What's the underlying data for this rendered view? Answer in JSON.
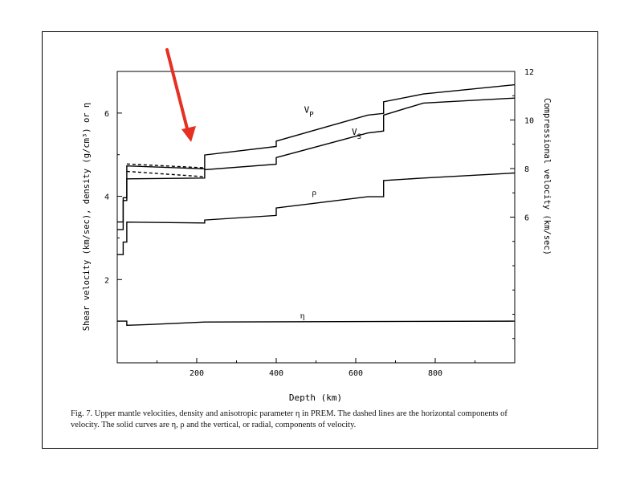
{
  "figure": {
    "caption_line1": "Fig. 7. Upper mantle velocities, density and anisotropic parameter η in PREM. The dashed lines are the horizontal components of",
    "caption_line2": "velocity. The solid curves are η, ρ and the vertical, or radial, components of velocity."
  },
  "annotation": {
    "arrow_color": "#e53022"
  },
  "chart_data": {
    "type": "line",
    "xlabel": "Depth (km)",
    "ylabel_left": "Shear velocity (km/sec), density (g/cm³) or η",
    "ylabel_right": "Compressional velocity (km/sec)",
    "xlim": [
      0,
      1000
    ],
    "ylim_left": [
      0,
      7
    ],
    "ylim_right": [
      0,
      12
    ],
    "x_ticks": [
      200,
      400,
      600,
      800
    ],
    "y_left_ticks": [
      2,
      4,
      6
    ],
    "y_right_ticks": [
      6,
      8,
      10,
      12
    ],
    "grid": false,
    "series": [
      {
        "name": "V_P",
        "axis": "right",
        "style": "solid",
        "label": "VP",
        "label_sub": "P",
        "label_at": [
          470,
          10.3
        ],
        "points": [
          [
            0,
            5.8
          ],
          [
            15,
            5.8
          ],
          [
            15,
            6.8
          ],
          [
            24,
            6.8
          ],
          [
            24,
            8.11
          ],
          [
            220,
            7.99
          ],
          [
            220,
            8.56
          ],
          [
            400,
            8.91
          ],
          [
            400,
            9.13
          ],
          [
            630,
            10.2
          ],
          [
            670,
            10.27
          ],
          [
            670,
            10.75
          ],
          [
            770,
            11.07
          ],
          [
            1000,
            11.45
          ]
        ]
      },
      {
        "name": "V_S",
        "axis": "left",
        "style": "solid",
        "label": "VS",
        "label_sub": "S",
        "label_at": [
          590,
          5.48
        ],
        "points": [
          [
            0,
            3.2
          ],
          [
            15,
            3.2
          ],
          [
            15,
            3.9
          ],
          [
            24,
            3.9
          ],
          [
            24,
            4.42
          ],
          [
            220,
            4.44
          ],
          [
            220,
            4.64
          ],
          [
            400,
            4.77
          ],
          [
            400,
            4.93
          ],
          [
            630,
            5.52
          ],
          [
            670,
            5.57
          ],
          [
            670,
            5.95
          ],
          [
            770,
            6.24
          ],
          [
            1000,
            6.36
          ]
        ]
      },
      {
        "name": "rho",
        "axis": "left",
        "style": "solid",
        "label": "ρ",
        "label_at": [
          490,
          4.03
        ],
        "points": [
          [
            0,
            2.6
          ],
          [
            15,
            2.6
          ],
          [
            15,
            2.9
          ],
          [
            24,
            2.9
          ],
          [
            24,
            3.38
          ],
          [
            220,
            3.36
          ],
          [
            220,
            3.43
          ],
          [
            400,
            3.54
          ],
          [
            400,
            3.72
          ],
          [
            630,
            3.99
          ],
          [
            670,
            3.99
          ],
          [
            670,
            4.38
          ],
          [
            770,
            4.44
          ],
          [
            1000,
            4.56
          ]
        ]
      },
      {
        "name": "eta",
        "axis": "left",
        "style": "solid",
        "label": "η",
        "label_at": [
          460,
          1.07
        ],
        "points": [
          [
            0,
            1
          ],
          [
            24,
            1
          ],
          [
            24,
            0.9
          ],
          [
            80,
            0.92
          ],
          [
            220,
            0.98
          ],
          [
            1000,
            1
          ]
        ]
      },
      {
        "name": "V_PH",
        "axis": "right",
        "style": "dashed",
        "points": [
          [
            24,
            8.19
          ],
          [
            220,
            8.03
          ]
        ]
      },
      {
        "name": "V_SH",
        "axis": "left",
        "style": "dashed",
        "points": [
          [
            24,
            4.6
          ],
          [
            220,
            4.47
          ]
        ]
      }
    ]
  }
}
